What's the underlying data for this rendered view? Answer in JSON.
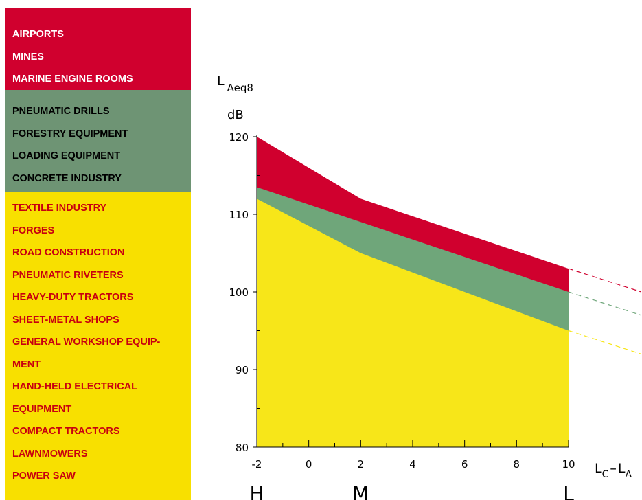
{
  "legend": {
    "groups": [
      {
        "color": "#d0002e",
        "text_color": "#ffffff",
        "items": [
          "AIRPORTS",
          "MINES",
          "MARINE ENGINE ROOMS"
        ]
      },
      {
        "color": "#6e9474",
        "text_color": "#000000",
        "items": [
          "PNEUMATIC DRILLS",
          "FORESTRY EQUIPMENT",
          "LOADING EQUIPMENT",
          "CONCRETE INDUSTRY"
        ]
      },
      {
        "color": "#f8e000",
        "text_color": "#c8000f",
        "items": [
          "TEXTILE INDUSTRY",
          "FORGES",
          "ROAD CONSTRUCTION",
          "PNEUMATIC RIVETERS",
          "HEAVY-DUTY TRACTORS",
          "SHEET-METAL SHOPS",
          "GENERAL WORKSHOP EQUIP-",
          "MENT",
          "HAND-HELD ELECTRICAL",
          "EQUIPMENT",
          "COMPACT TRACTORS",
          "LAWNMOWERS",
          "POWER SAW"
        ]
      }
    ]
  },
  "chart_data": {
    "type": "area",
    "ylabel": {
      "main": "L",
      "sub": "Aeq8",
      "unit": "dB"
    },
    "xlabel": {
      "l1": "L",
      "s1": "C",
      "dash": "–",
      "l2": "L",
      "s2": "A"
    },
    "x": [
      -2,
      2,
      10
    ],
    "xlim": [
      -2,
      10
    ],
    "ylim": [
      80,
      120
    ],
    "x_ticks": [
      -2,
      0,
      2,
      4,
      6,
      8,
      10
    ],
    "x_tick_labels": [
      "-2",
      "0",
      "2",
      "4",
      "6",
      "8",
      "10"
    ],
    "y_major_ticks": [
      80,
      90,
      100,
      110,
      120
    ],
    "y_tick_labels": [
      "80",
      "90",
      "100",
      "110",
      "120"
    ],
    "y_minor_step": 5,
    "category_labels": [
      {
        "x": -2,
        "label": "H"
      },
      {
        "x": 2,
        "label": "M"
      },
      {
        "x": 10,
        "label": "L"
      }
    ],
    "series": [
      {
        "color": "#d0002e",
        "values": [
          120,
          112,
          103
        ],
        "extrapolate_to": [
          12.8,
          100
        ]
      },
      {
        "color": "#6fa67a",
        "values": [
          113.5,
          109,
          100
        ],
        "extrapolate_to": [
          12.8,
          97
        ]
      },
      {
        "color": "#f7e619",
        "values": [
          112,
          105,
          95
        ],
        "extrapolate_to": [
          12.8,
          92
        ]
      }
    ],
    "grid": false,
    "legend_position": "left"
  }
}
